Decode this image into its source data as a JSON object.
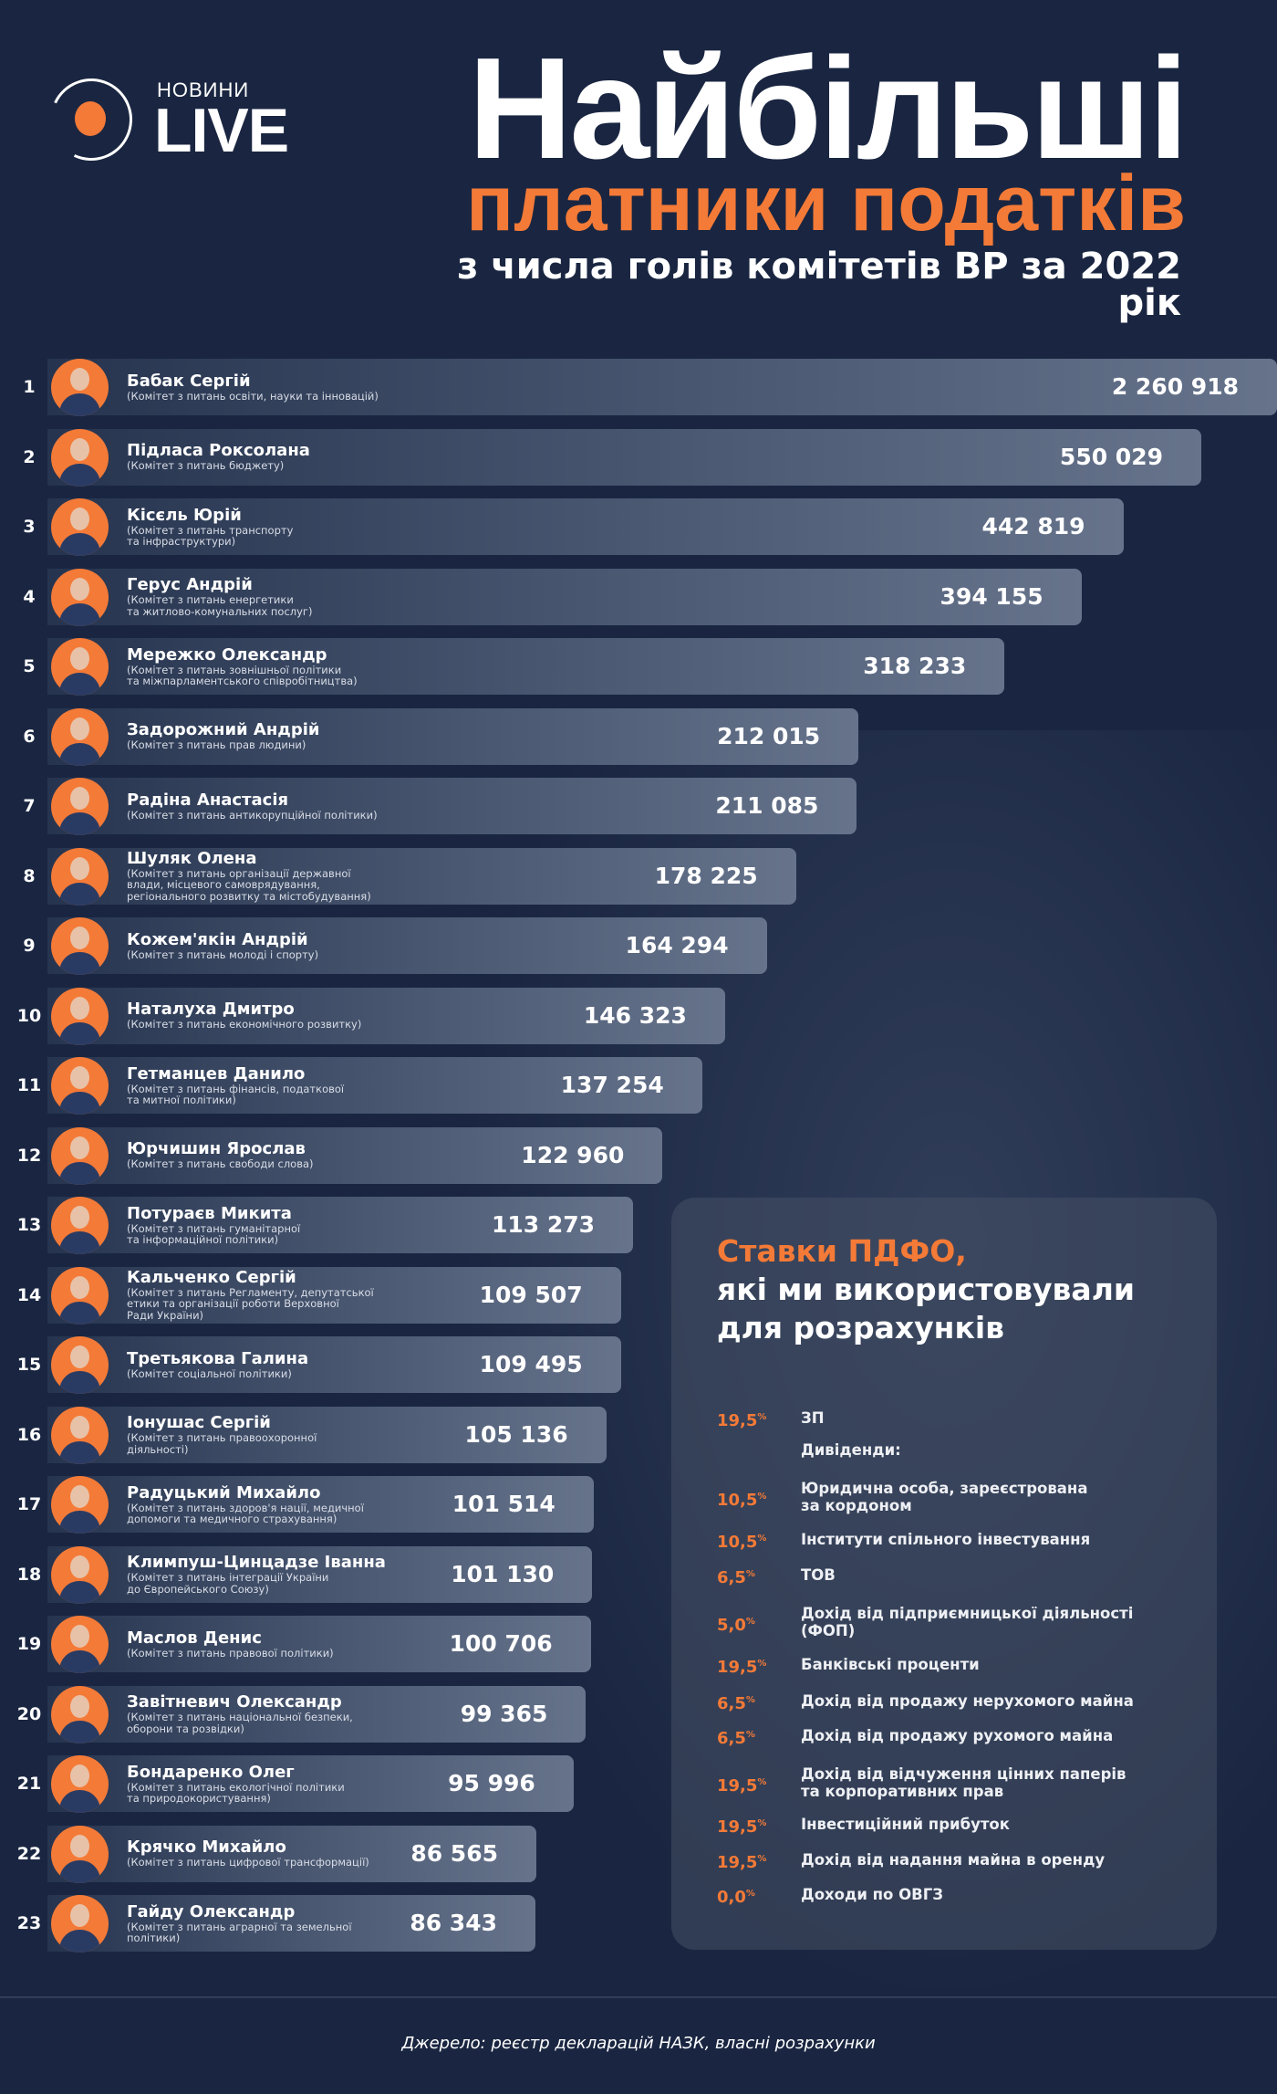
{
  "logo": {
    "small": "НОВИНИ",
    "big": "LIVE"
  },
  "header": {
    "title_line1": "Найбільші",
    "title_line2": "платники податків",
    "subtitle": "з числа голів комітетів ВР за 2022 рік"
  },
  "colors": {
    "background": "#1a2641",
    "accent": "#f47a37",
    "bar_start": "#26344f",
    "bar_end": "#66738b"
  },
  "chart_data": {
    "type": "bar",
    "orientation": "horizontal",
    "ranks": [
      "1",
      "2",
      "3",
      "4",
      "5",
      "6",
      "7",
      "8",
      "9",
      "10",
      "11",
      "12",
      "13",
      "14",
      "15",
      "16",
      "17",
      "18",
      "19",
      "20",
      "21",
      "22",
      "23"
    ],
    "categories": [
      "Бабак Сергій",
      "Підласа Роксолана",
      "Кісєль Юрій",
      "Герус Андрій",
      "Мережко Олександр",
      "Задорожний Андрій",
      "Радіна Анастасія",
      "Шуляк Олена",
      "Кожем'якін Андрій",
      "Наталуха Дмитро",
      "Гетманцев Данило",
      "Юрчишин Ярослав",
      "Потураєв Микита",
      "Кальченко Сергій",
      "Третьякова Галина",
      "Іонушас Сергій",
      "Радуцький Михайло",
      "Климпуш-Цинцадзе Іванна",
      "Маслов Денис",
      "Завітневич Олександр",
      "Бондаренко Олег",
      "Крячко Михайло",
      "Гайду Олександр"
    ],
    "committees": [
      "(Комітет з питань освіти, науки та інновацій)",
      "(Комітет з питань бюджету)",
      "(Комітет з питань транспорту\nта інфраструктури)",
      "(Комітет з питань енергетики\nта житлово-комунальних послуг)",
      "(Комітет з питань зовнішньої політики\nта міжпарламентського співробітництва)",
      "(Комітет з питань прав людини)",
      "(Комітет з питань антикорупційної політики)",
      "(Комітет з питань організації державної\nвлади, місцевого самоврядування,\nрегіонального розвитку та містобудування)",
      "(Комітет з питань молоді і спорту)",
      "(Комітет з питань економічного розвитку)",
      "(Комітет з питань фінансів, податкової\nта митної політики)",
      "(Комітет з питань свободи слова)",
      "(Комітет з питань гуманітарної\nта інформаційної політики)",
      "(Комітет з питань Регламенту, депутатської\nетики та організації роботи Верховної\nРади України)",
      "(Комітет соціальної політики)",
      "(Комітет з питань правоохоронної\nдіяльності)",
      "(Комітет з питань здоров'я нації, медичної\nдопомоги та медичного страхування)",
      "(Комітет з питань інтеграції України\nдо Європейського Союзу)",
      "(Комітет з питань правової політики)",
      "(Комітет з питань національної безпеки,\nоборони та розвідки)",
      "(Комітет з питань екологічної політики\nта природокористування)",
      "(Комітет з питань цифрової трансформації)",
      "(Комітет з питань аграрної та земельної\nполітики)"
    ],
    "values": [
      2260918,
      550029,
      442819,
      394155,
      318233,
      212015,
      211085,
      178225,
      164294,
      146323,
      137254,
      122960,
      113273,
      109507,
      109495,
      105136,
      101514,
      101130,
      100706,
      99365,
      95996,
      86565,
      86343
    ],
    "value_labels": [
      "2 260 918",
      "550 029",
      "442 819",
      "394 155",
      "318 233",
      "212 015",
      "211 085",
      "178 225",
      "164 294",
      "146 323",
      "137 254",
      "122 960",
      "113 273",
      "109 507",
      "109 495",
      "105 136",
      "101 514",
      "101 130",
      "100 706",
      "99 365",
      "95 996",
      "86 565",
      "86 343"
    ]
  },
  "panel": {
    "title_accent": "Ставки ПДФО,",
    "title_rest": "які ми використовували\nдля розрахунків",
    "rows": [
      {
        "rate": "19,5",
        "label": "ЗП"
      },
      {
        "rate": "",
        "label": "Дивіденди:"
      },
      {
        "rate": "10,5",
        "label": "Юридична особа, зареєстрована\nза кордоном"
      },
      {
        "rate": "10,5",
        "label": "Інститути спільного інвестування"
      },
      {
        "rate": "6,5",
        "label": "ТОВ"
      },
      {
        "rate": "5,0",
        "label": "Дохід від підприємницької діяльності\n(ФОП)"
      },
      {
        "rate": "19,5",
        "label": "Банківські проценти"
      },
      {
        "rate": "6,5",
        "label": "Дохід від продажу  нерухомого майна"
      },
      {
        "rate": "6,5",
        "label": "Дохід від продажу  рухомого майна"
      },
      {
        "rate": "19,5",
        "label": "Дохід від  відчуження цінних паперів\nта корпоративних прав"
      },
      {
        "rate": "19,5",
        "label": "Інвестиційний  прибуток"
      },
      {
        "rate": "19,5",
        "label": "Дохід від надання майна в оренду"
      },
      {
        "rate": "0,0",
        "label": "Доходи по ОВГЗ"
      }
    ],
    "percent_sign": "%"
  },
  "footer": {
    "source": "Джерело: реєстр декларацій НАЗК, власні розрахунки"
  }
}
